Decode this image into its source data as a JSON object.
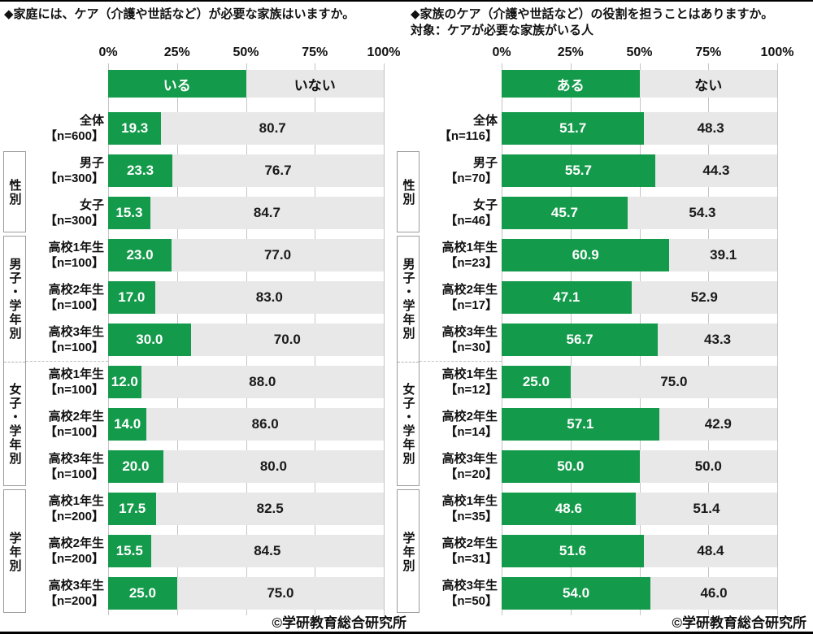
{
  "page": {
    "top_rule": true,
    "bottom_rule": true
  },
  "colors": {
    "green": "#149a4b",
    "bar_gray": "#e8e8e8",
    "grid_gray": "#c4c4c4",
    "box_border_gray": "#9c9c9c",
    "text": "#111111"
  },
  "chart_data": [
    {
      "type": "bar",
      "orientation": "horizontal",
      "stacked": true,
      "title": "◆家庭には、ケア（介護や世話など）が必要な家族はいますか。",
      "subtitle": "",
      "axis_ticks": [
        "0%",
        "25%",
        "50%",
        "75%",
        "100%"
      ],
      "xlim": [
        0,
        100
      ],
      "grid": true,
      "legend": {
        "yes": "いる",
        "no": "いない"
      },
      "footer": "©学研教育総合研究所",
      "groups": [
        {
          "label": "",
          "rows": [
            {
              "name": "全体",
              "n": "【n=600】",
              "yes": 19.3,
              "no": 80.7
            }
          ]
        },
        {
          "label": "性別",
          "rows": [
            {
              "name": "男子",
              "n": "【n=300】",
              "yes": 23.3,
              "no": 76.7
            },
            {
              "name": "女子",
              "n": "【n=300】",
              "yes": 15.3,
              "no": 84.7
            }
          ]
        },
        {
          "label": "男子・学年別",
          "merge_with_next": true,
          "rows": [
            {
              "name": "高校1年生",
              "n": "【n=100】",
              "yes": 23.0,
              "no": 77.0
            },
            {
              "name": "高校2年生",
              "n": "【n=100】",
              "yes": 17.0,
              "no": 83.0
            },
            {
              "name": "高校3年生",
              "n": "【n=100】",
              "yes": 30.0,
              "no": 70.0
            }
          ]
        },
        {
          "label": "女子・学年別",
          "rows": [
            {
              "name": "高校1年生",
              "n": "【n=100】",
              "yes": 12.0,
              "no": 88.0
            },
            {
              "name": "高校2年生",
              "n": "【n=100】",
              "yes": 14.0,
              "no": 86.0
            },
            {
              "name": "高校3年生",
              "n": "【n=100】",
              "yes": 20.0,
              "no": 80.0
            }
          ]
        },
        {
          "label": "学年別",
          "rows": [
            {
              "name": "高校1年生",
              "n": "【n=200】",
              "yes": 17.5,
              "no": 82.5
            },
            {
              "name": "高校2年生",
              "n": "【n=200】",
              "yes": 15.5,
              "no": 84.5
            },
            {
              "name": "高校3年生",
              "n": "【n=200】",
              "yes": 25.0,
              "no": 75.0
            }
          ]
        }
      ]
    },
    {
      "type": "bar",
      "orientation": "horizontal",
      "stacked": true,
      "title": "◆家族のケア（介護や世話など）の役割を担うことはありますか。",
      "subtitle": "対象：ケアが必要な家族がいる人",
      "axis_ticks": [
        "0%",
        "25%",
        "50%",
        "75%",
        "100%"
      ],
      "xlim": [
        0,
        100
      ],
      "grid": true,
      "legend": {
        "yes": "ある",
        "no": "ない"
      },
      "footer": "©学研教育総合研究所",
      "groups": [
        {
          "label": "",
          "rows": [
            {
              "name": "全体",
              "n": "【n=116】",
              "yes": 51.7,
              "no": 48.3
            }
          ]
        },
        {
          "label": "性別",
          "rows": [
            {
              "name": "男子",
              "n": "【n=70】",
              "yes": 55.7,
              "no": 44.3
            },
            {
              "name": "女子",
              "n": "【n=46】",
              "yes": 45.7,
              "no": 54.3
            }
          ]
        },
        {
          "label": "男子・学年別",
          "merge_with_next": true,
          "rows": [
            {
              "name": "高校1年生",
              "n": "【n=23】",
              "yes": 60.9,
              "no": 39.1
            },
            {
              "name": "高校2年生",
              "n": "【n=17】",
              "yes": 47.1,
              "no": 52.9
            },
            {
              "name": "高校3年生",
              "n": "【n=30】",
              "yes": 56.7,
              "no": 43.3
            }
          ]
        },
        {
          "label": "女子・学年別",
          "rows": [
            {
              "name": "高校1年生",
              "n": "【n=12】",
              "yes": 25.0,
              "no": 75.0
            },
            {
              "name": "高校2年生",
              "n": "【n=14】",
              "yes": 57.1,
              "no": 42.9
            },
            {
              "name": "高校3年生",
              "n": "【n=20】",
              "yes": 50.0,
              "no": 50.0
            }
          ]
        },
        {
          "label": "学年別",
          "rows": [
            {
              "name": "高校1年生",
              "n": "【n=35】",
              "yes": 48.6,
              "no": 51.4
            },
            {
              "name": "高校2年生",
              "n": "【n=31】",
              "yes": 51.6,
              "no": 48.4
            },
            {
              "name": "高校3年生",
              "n": "【n=50】",
              "yes": 54.0,
              "no": 46.0
            }
          ]
        }
      ]
    }
  ]
}
